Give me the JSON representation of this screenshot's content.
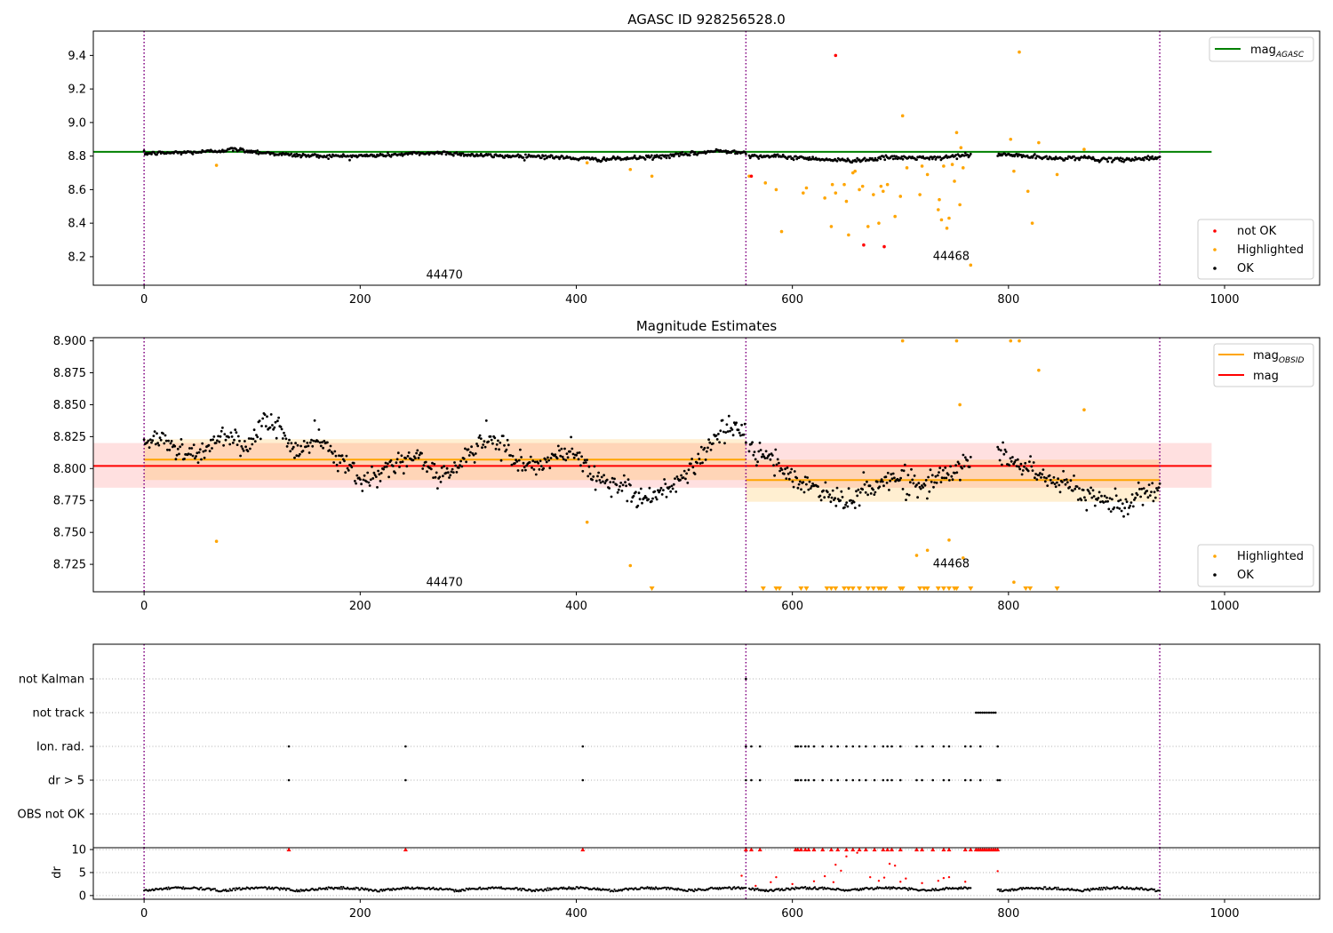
{
  "chart_data": [
    {
      "type": "scatter",
      "title": "AGASC ID 928256528.0",
      "xlim": [
        -47,
        1088
      ],
      "ylim": [
        8.03,
        9.545
      ],
      "xticks": [
        0,
        200,
        400,
        600,
        800,
        1000
      ],
      "yticks": [
        8.2,
        8.4,
        8.6,
        8.8,
        9.0,
        9.2,
        9.4
      ],
      "ytick_decimals": 1,
      "grid": false,
      "colors": {
        "ok": "#000000",
        "highlighted": "#ffa500",
        "not_ok": "#ff0000",
        "mag_agasc": "#008000",
        "boundary": "#800080"
      },
      "vlines": [
        0,
        557,
        940
      ],
      "obsids": [
        {
          "label": "44470",
          "x": 278,
          "y": 8.07
        },
        {
          "label": "44468",
          "x": 747,
          "y": 8.18
        }
      ],
      "hlines": [
        {
          "name": "mag_AGASC",
          "y": 8.825,
          "x": [
            -47,
            988
          ],
          "color": "#008000"
        }
      ],
      "legend_upper": {
        "position": "top-right",
        "entries": [
          {
            "label": "mag",
            "sub": "AGASC",
            "color": "#008000"
          }
        ]
      },
      "legend_lower": {
        "position": "bottom-right",
        "entries": [
          {
            "label": "not OK",
            "color": "#ff0000"
          },
          {
            "label": "Highlighted",
            "color": "#ffa500"
          },
          {
            "label": "OK",
            "color": "#000000"
          }
        ]
      },
      "ok_segments": [
        {
          "x": [
            0,
            557
          ],
          "knots": [
            8.815,
            8.82,
            8.825,
            8.84,
            8.82,
            8.805,
            8.8,
            8.8,
            8.805,
            8.815,
            8.82,
            8.805,
            8.8,
            8.8,
            8.79,
            8.78,
            8.785,
            8.795,
            8.81,
            8.83,
            8.825
          ]
        },
        {
          "x": [
            560,
            765
          ],
          "knots": [
            8.8,
            8.8,
            8.795,
            8.79,
            8.785,
            8.775,
            8.775,
            8.78,
            8.79,
            8.79,
            8.79,
            8.785,
            8.8,
            8.805
          ]
        },
        {
          "x": [
            790,
            940
          ],
          "knots": [
            8.81,
            8.805,
            8.795,
            8.785,
            8.79,
            8.79,
            8.775,
            8.78,
            8.785,
            8.79
          ]
        }
      ],
      "highlighted": [
        [
          67,
          8.745
        ],
        [
          410,
          8.76
        ],
        [
          450,
          8.72
        ],
        [
          470,
          8.68
        ],
        [
          560,
          8.68
        ],
        [
          575,
          8.64
        ],
        [
          585,
          8.6
        ],
        [
          590,
          8.35
        ],
        [
          610,
          8.58
        ],
        [
          613,
          8.61
        ],
        [
          630,
          8.55
        ],
        [
          636,
          8.38
        ],
        [
          637,
          8.63
        ],
        [
          640,
          8.58
        ],
        [
          648,
          8.63
        ],
        [
          650,
          8.53
        ],
        [
          652,
          8.33
        ],
        [
          656,
          8.7
        ],
        [
          658,
          8.71
        ],
        [
          662,
          8.6
        ],
        [
          665,
          8.62
        ],
        [
          670,
          8.38
        ],
        [
          675,
          8.57
        ],
        [
          680,
          8.4
        ],
        [
          682,
          8.62
        ],
        [
          684,
          8.59
        ],
        [
          688,
          8.63
        ],
        [
          695,
          8.44
        ],
        [
          700,
          8.56
        ],
        [
          702,
          9.04
        ],
        [
          706,
          8.73
        ],
        [
          718,
          8.57
        ],
        [
          720,
          8.74
        ],
        [
          725,
          8.69
        ],
        [
          735,
          8.48
        ],
        [
          736,
          8.54
        ],
        [
          738,
          8.42
        ],
        [
          740,
          8.74
        ],
        [
          743,
          8.37
        ],
        [
          745,
          8.43
        ],
        [
          748,
          8.75
        ],
        [
          750,
          8.65
        ],
        [
          752,
          8.94
        ],
        [
          755,
          8.51
        ],
        [
          756,
          8.85
        ],
        [
          758,
          8.73
        ],
        [
          765,
          8.15
        ],
        [
          802,
          8.9
        ],
        [
          805,
          8.71
        ],
        [
          810,
          9.42
        ],
        [
          818,
          8.59
        ],
        [
          822,
          8.4
        ],
        [
          828,
          8.88
        ],
        [
          845,
          8.69
        ],
        [
          870,
          8.84
        ]
      ],
      "not_ok": [
        [
          562,
          8.68
        ],
        [
          640,
          9.4
        ],
        [
          666,
          8.27
        ],
        [
          685,
          8.26
        ]
      ]
    },
    {
      "type": "scatter",
      "title": "Magnitude Estimates",
      "xlim": [
        -47,
        1088
      ],
      "ylim": [
        8.7035,
        8.9025
      ],
      "xticks": [
        0,
        200,
        400,
        600,
        800,
        1000
      ],
      "yticks": [
        8.725,
        8.75,
        8.775,
        8.8,
        8.825,
        8.85,
        8.875,
        8.9
      ],
      "ytick_decimals": 3,
      "grid": false,
      "colors": {
        "ok": "#000000",
        "highlighted": "#ffa500",
        "mag": "#ff0000",
        "mag_obsid": "#ffa500",
        "boundary": "#800080"
      },
      "vlines": [
        0,
        557,
        940
      ],
      "obsids": [
        {
          "label": "44470",
          "x": 278,
          "y": 8.708
        },
        {
          "label": "44468",
          "x": 747,
          "y": 8.7225
        }
      ],
      "bands": [
        {
          "x": [
            -47,
            988
          ],
          "y": [
            8.785,
            8.82
          ],
          "color": "#ff0000",
          "opacity": 0.12
        },
        {
          "x": [
            0,
            557
          ],
          "y": [
            8.791,
            8.823
          ],
          "color": "#ffa500",
          "opacity": 0.18
        },
        {
          "x": [
            557,
            940
          ],
          "y": [
            8.774,
            8.807
          ],
          "color": "#ffa500",
          "opacity": 0.18
        }
      ],
      "hlines": [
        {
          "name": "mag_OBSID",
          "y": 8.807,
          "x": [
            0,
            557
          ],
          "color": "#ffa500"
        },
        {
          "name": "mag_OBSID",
          "y": 8.791,
          "x": [
            557,
            940
          ],
          "color": "#ffa500"
        },
        {
          "name": "mag",
          "y": 8.802,
          "x": [
            -47,
            988
          ],
          "color": "#ff0000"
        }
      ],
      "legend_upper": {
        "position": "top-right",
        "entries": [
          {
            "label": "mag",
            "sub": "OBSID",
            "color": "#ffa500"
          },
          {
            "label": "mag",
            "sub": "",
            "color": "#ff0000"
          }
        ]
      },
      "legend_lower": {
        "position": "bottom-right",
        "entries": [
          {
            "label": "Highlighted",
            "color": "#ffa500"
          },
          {
            "label": "OK",
            "color": "#000000"
          }
        ]
      },
      "ok_segments": [
        {
          "x": [
            0,
            557
          ],
          "knots": [
            8.82,
            8.825,
            8.815,
            8.81,
            8.82,
            8.825,
            8.81,
            8.84,
            8.83,
            8.81,
            8.825,
            8.81,
            8.8,
            8.79,
            8.8,
            8.805,
            8.81,
            8.795,
            8.8,
            8.81,
            8.825,
            8.815,
            8.805,
            8.8,
            8.81,
            8.815,
            8.795,
            8.79,
            8.785,
            8.775,
            8.78,
            8.79,
            8.8,
            8.82,
            8.835,
            8.825
          ]
        },
        {
          "x": [
            560,
            765
          ],
          "knots": [
            8.815,
            8.81,
            8.8,
            8.79,
            8.785,
            8.78,
            8.775,
            8.78,
            8.785,
            8.795,
            8.79,
            8.785,
            8.795,
            8.8,
            8.805
          ]
        },
        {
          "x": [
            790,
            940
          ],
          "knots": [
            8.81,
            8.805,
            8.8,
            8.79,
            8.785,
            8.78,
            8.775,
            8.77,
            8.78,
            8.785
          ]
        }
      ],
      "highlighted": [
        [
          67,
          8.743
        ],
        [
          410,
          8.758
        ],
        [
          450,
          8.724
        ],
        [
          702,
          8.9
        ],
        [
          715,
          8.732
        ],
        [
          725,
          8.736
        ],
        [
          745,
          8.744
        ],
        [
          752,
          8.9
        ],
        [
          755,
          8.85
        ],
        [
          758,
          8.73
        ],
        [
          802,
          8.9
        ],
        [
          805,
          8.711
        ],
        [
          810,
          8.9
        ],
        [
          828,
          8.877
        ],
        [
          870,
          8.846
        ]
      ],
      "highlighted_clipped_low": [
        470,
        573,
        585,
        588,
        608,
        613,
        632,
        636,
        640,
        648,
        652,
        656,
        662,
        670,
        675,
        680,
        682,
        686,
        700,
        702,
        718,
        722,
        725,
        735,
        740,
        745,
        750,
        752,
        765,
        816,
        820,
        845
      ]
    },
    {
      "type": "scatter",
      "title": "",
      "xlim": [
        -47,
        1088
      ],
      "categories": [
        "not Kalman",
        "not track",
        "Ion. rad.",
        "dr > 5",
        "OBS not OK"
      ],
      "flags": {
        "not Kalman": [
          557
        ],
        "not track": [
          770,
          772,
          774,
          776,
          778,
          780,
          782,
          784,
          786,
          788
        ],
        "Ion. rad.": [
          134,
          242,
          406,
          557,
          562,
          570,
          603,
          605,
          608,
          612,
          615,
          620,
          628,
          636,
          642,
          650,
          656,
          662,
          668,
          676,
          684,
          688,
          692,
          700,
          715,
          720,
          730,
          740,
          745,
          760,
          765,
          774,
          790
        ],
        "dr > 5": [
          134,
          242,
          406,
          557,
          562,
          570,
          603,
          605,
          608,
          612,
          615,
          620,
          628,
          636,
          642,
          650,
          656,
          662,
          668,
          676,
          684,
          688,
          692,
          700,
          715,
          720,
          730,
          740,
          745,
          760,
          765,
          774,
          790,
          792
        ],
        "OBS not OK": []
      },
      "colors": {
        "flag": "#000000",
        "boundary": "#800080",
        "row_grid": "#b0b0b0"
      },
      "vlines": [
        0,
        557,
        940
      ]
    },
    {
      "type": "scatter",
      "title": "",
      "xlim": [
        -47,
        1088
      ],
      "ylabel": "dr",
      "ylim": [
        -0.8,
        10.4
      ],
      "xticks": [
        0,
        200,
        400,
        600,
        800,
        1000
      ],
      "yticks": [
        0,
        5,
        10
      ],
      "ytick_decimals": 0,
      "grid": true,
      "colors": {
        "dr": "#000000",
        "dr_high": "#ff0000",
        "boundary": "#800080",
        "row_grid": "#b0b0b0"
      },
      "vlines": [
        0,
        557,
        940
      ],
      "dr_clipped": [
        134,
        242,
        406,
        557,
        562,
        570,
        603,
        605,
        608,
        612,
        615,
        620,
        628,
        636,
        642,
        650,
        656,
        662,
        668,
        676,
        684,
        688,
        692,
        700,
        715,
        720,
        730,
        740,
        745,
        760,
        765,
        770,
        772,
        774,
        776,
        778,
        780,
        782,
        784,
        786,
        788,
        790
      ],
      "dr_high": [
        [
          553,
          4.3
        ],
        [
          566,
          2.1
        ],
        [
          580,
          2.9
        ],
        [
          585,
          4.0
        ],
        [
          600,
          2.5
        ],
        [
          620,
          3.1
        ],
        [
          630,
          4.2
        ],
        [
          638,
          2.9
        ],
        [
          640,
          6.7
        ],
        [
          645,
          5.4
        ],
        [
          650,
          8.5
        ],
        [
          660,
          9.3
        ],
        [
          672,
          4.0
        ],
        [
          680,
          3.2
        ],
        [
          685,
          3.9
        ],
        [
          690,
          6.9
        ],
        [
          695,
          6.5
        ],
        [
          700,
          3.0
        ],
        [
          705,
          3.7
        ],
        [
          720,
          2.7
        ],
        [
          735,
          3.2
        ],
        [
          740,
          3.8
        ],
        [
          745,
          4.0
        ],
        [
          760,
          3.0
        ],
        [
          790,
          5.3
        ]
      ]
    }
  ]
}
